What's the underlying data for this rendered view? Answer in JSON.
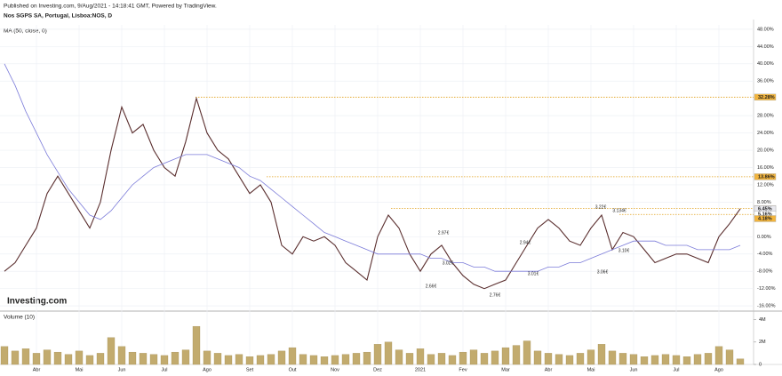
{
  "header": {
    "published": "Published on Investing.com, 9/Aug/2021 - 14:18:41 GMT, Powered by TradingView.",
    "symbol": "Nos SGPS SA, Portugal, Lisboa:NOS, D",
    "indicator": "MA (50, close, 0)",
    "watermark": "Investing.com"
  },
  "annotations": [
    "3.22€",
    "3.134€",
    "2.97€",
    "2.94€",
    "3.10€",
    "3.02€",
    "3.06€",
    "3.01€",
    "2.66€",
    "2.76€"
  ],
  "chart_data": [
    {
      "type": "line",
      "series": [
        {
          "name": "Close",
          "color": "#5a2e2e",
          "values": [
            -8,
            -6,
            -2,
            2,
            10,
            14,
            10,
            6,
            2,
            8,
            20,
            30,
            24,
            26,
            20,
            16,
            14,
            22,
            32,
            24,
            20,
            18,
            14,
            10,
            12,
            8,
            -2,
            -4,
            0,
            -1,
            0,
            -2,
            -6,
            -8,
            -10,
            0,
            5,
            2,
            -4,
            -8,
            -4,
            -2,
            -6,
            -9,
            -11,
            -12,
            -11,
            -10,
            -6,
            -2,
            2,
            4,
            2,
            -1,
            -2,
            2,
            5,
            -3,
            1,
            0,
            -3,
            -6,
            -5,
            -4,
            -4,
            -5,
            -6,
            0,
            3,
            6.45
          ]
        },
        {
          "name": "MA",
          "color": "#7b7bd9",
          "values": [
            40,
            35,
            29,
            24,
            19,
            15,
            11,
            8,
            5,
            4,
            6,
            9,
            12,
            14,
            16,
            17,
            18,
            19,
            19,
            19,
            18,
            17,
            16,
            14,
            13,
            11,
            9,
            7,
            5,
            3,
            1,
            0,
            -1,
            -2,
            -3,
            -4,
            -4,
            -4,
            -4,
            -4,
            -5,
            -5,
            -6,
            -6,
            -7,
            -7,
            -8,
            -8,
            -8,
            -8,
            -8,
            -7,
            -7,
            -6,
            -6,
            -5,
            -4,
            -3,
            -2,
            -1,
            -1,
            -1,
            -2,
            -2,
            -2,
            -3,
            -3,
            -3,
            -3,
            -2
          ]
        }
      ],
      "ylim": [
        -17,
        49
      ],
      "yticks": [
        {
          "value": 48,
          "label": "48.00%"
        },
        {
          "value": 44,
          "label": "44.00%"
        },
        {
          "value": 40,
          "label": "40.00%"
        },
        {
          "value": 36,
          "label": "36.00%"
        },
        {
          "value": 28,
          "label": "28.00%"
        },
        {
          "value": 24,
          "label": "24.00%"
        },
        {
          "value": 20,
          "label": "20.00%"
        },
        {
          "value": 16,
          "label": "16.00%"
        },
        {
          "value": 12,
          "label": "12.00%"
        },
        {
          "value": 8,
          "label": "8.00%"
        },
        {
          "value": 0,
          "label": "0.00%"
        },
        {
          "value": -4,
          "label": "-4.00%"
        },
        {
          "value": -8,
          "label": "-8.00%"
        },
        {
          "value": -12,
          "label": "-12.00%"
        },
        {
          "value": -16,
          "label": "-16.00%"
        }
      ],
      "levels": [
        {
          "value": 32.28,
          "label": "32.28%",
          "color": "#f2b43c",
          "line": true
        },
        {
          "value": 13.86,
          "label": "13.86%",
          "color": "#f2b43c",
          "line": true
        },
        {
          "value": 6.51,
          "label": "6.51%",
          "color": "#f2b43c",
          "line": true
        },
        {
          "value": 6.45,
          "label": "6.45%",
          "color": "#e8e8ee",
          "line": false
        },
        {
          "value": 5.16,
          "label": "5.16%",
          "color": "#ffffff",
          "line": true
        },
        {
          "value": 4.18,
          "label": "4.18%",
          "color": "#f2b43c",
          "line": false
        }
      ],
      "grid": true
    },
    {
      "type": "bar",
      "title": "Volume (10)",
      "color": "#c2ab6e",
      "categories": [
        null,
        null,
        null,
        "Abr",
        null,
        null,
        null,
        "Mai",
        null,
        null,
        null,
        "Jun",
        null,
        null,
        null,
        "Jul",
        null,
        null,
        null,
        "Ago",
        null,
        null,
        null,
        "Set",
        null,
        null,
        null,
        "Out",
        null,
        null,
        null,
        "Nov",
        null,
        null,
        null,
        "Dez",
        null,
        null,
        null,
        "2021",
        null,
        null,
        null,
        "Fev",
        null,
        null,
        null,
        "Mar",
        null,
        null,
        null,
        "Abr",
        null,
        null,
        null,
        "Mai",
        null,
        null,
        null,
        "Jun",
        null,
        null,
        null,
        "Jul",
        null,
        null,
        null,
        "Ago",
        null,
        null
      ],
      "values": [
        1.6,
        1.2,
        1.4,
        1.0,
        1.3,
        1.1,
        0.9,
        1.2,
        0.8,
        1.0,
        2.4,
        1.6,
        1.1,
        1.0,
        0.9,
        0.8,
        1.1,
        1.3,
        3.4,
        1.2,
        1.0,
        0.8,
        0.9,
        0.7,
        0.8,
        0.9,
        1.2,
        1.5,
        0.9,
        0.8,
        0.7,
        0.8,
        0.9,
        1.0,
        1.1,
        1.8,
        2.0,
        1.3,
        1.0,
        1.4,
        0.9,
        1.0,
        0.8,
        1.1,
        1.3,
        1.0,
        1.2,
        1.5,
        1.7,
        2.1,
        1.2,
        1.0,
        0.9,
        0.8,
        1.0,
        1.3,
        1.8,
        1.2,
        1.0,
        0.9,
        0.7,
        0.8,
        0.9,
        0.8,
        0.7,
        0.9,
        1.0,
        1.6,
        1.3,
        0.5
      ],
      "ylim": [
        0,
        4.6
      ],
      "yticks": [
        {
          "value": 4,
          "label": "4M"
        },
        {
          "value": 2,
          "label": "2M"
        },
        0
      ]
    }
  ]
}
